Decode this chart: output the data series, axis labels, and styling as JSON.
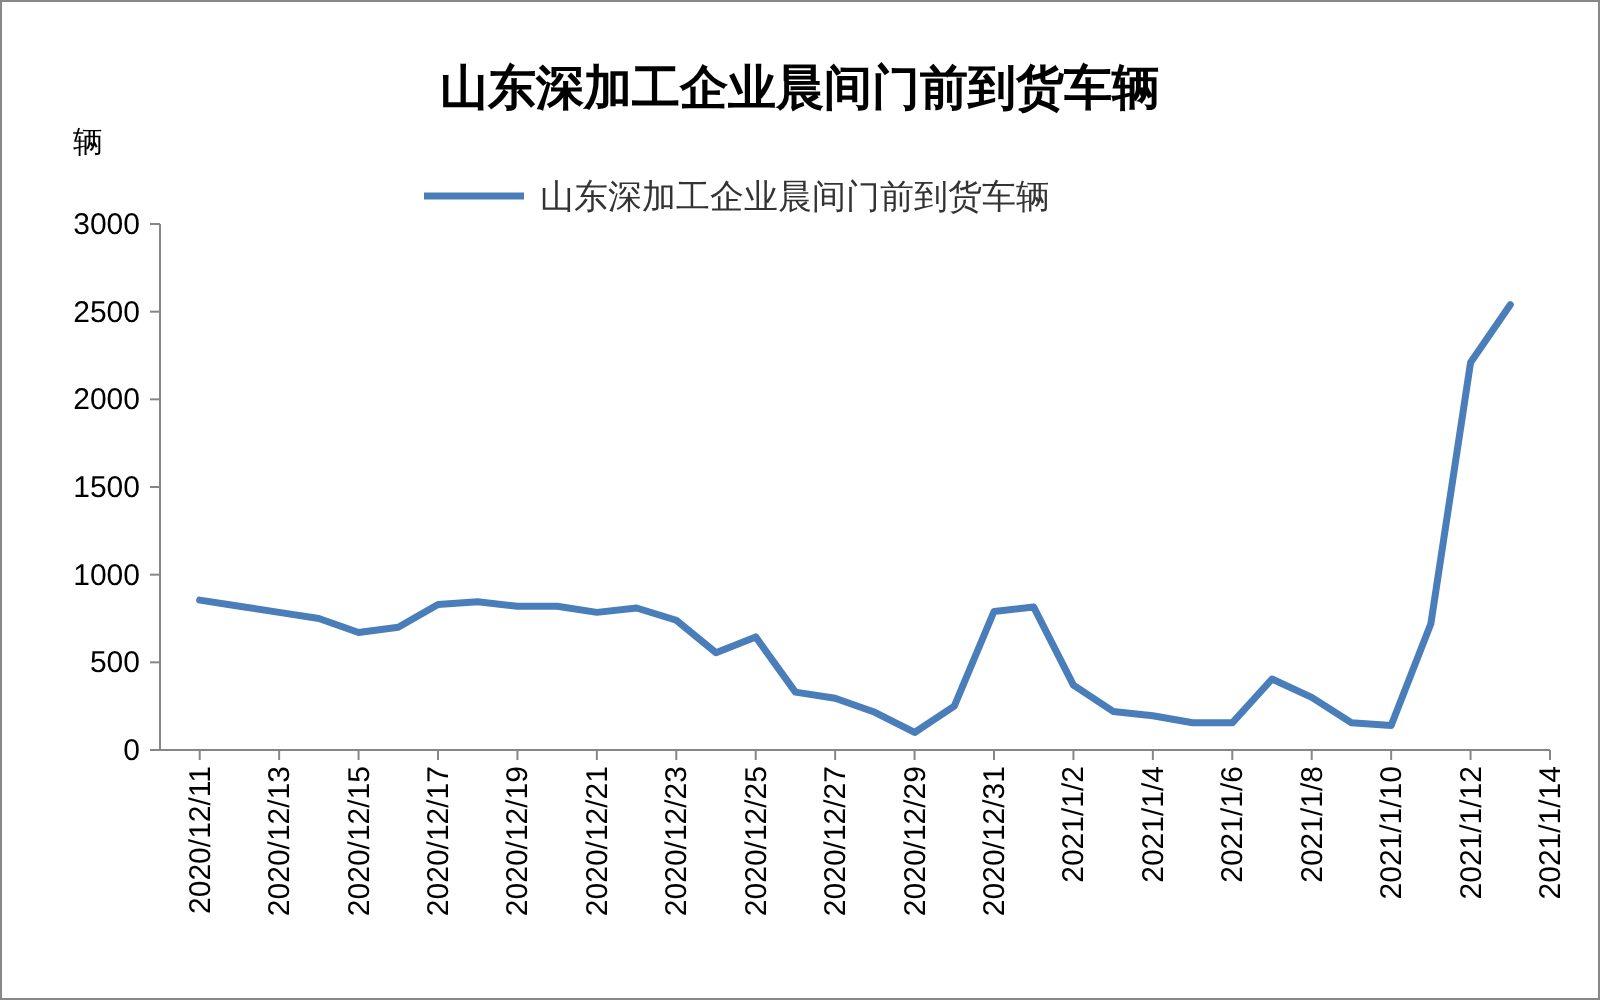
{
  "chart_data": {
    "type": "line",
    "title": "山东深加工企业晨间门前到货车辆",
    "ylabel": "辆",
    "x": [
      "2020-12-11",
      "2020-12-12",
      "2020-12-13",
      "2020-12-14",
      "2020-12-15",
      "2020-12-16",
      "2020-12-17",
      "2020-12-18",
      "2020-12-19",
      "2020-12-20",
      "2020-12-21",
      "2020-12-22",
      "2020-12-23",
      "2020-12-24",
      "2020-12-25",
      "2020-12-26",
      "2020-12-27",
      "2020-12-28",
      "2020-12-29",
      "2020-12-30",
      "2020-12-31",
      "2021-01-01",
      "2021-01-02",
      "2021-01-03",
      "2021-01-04",
      "2021-01-05",
      "2021-01-06",
      "2021-01-07",
      "2021-01-08",
      "2021-01-09",
      "2021-01-10",
      "2021-01-11",
      "2021-01-12",
      "2021-01-13"
    ],
    "series": [
      {
        "name": "山东深加工企业晨间门前到货车辆",
        "color": "#4a7ebb",
        "values": [
          855,
          820,
          785,
          750,
          670,
          700,
          830,
          845,
          820,
          820,
          785,
          810,
          740,
          555,
          645,
          330,
          295,
          215,
          100,
          250,
          790,
          815,
          370,
          220,
          195,
          155,
          155,
          405,
          300,
          155,
          140,
          720,
          2210,
          2540
        ]
      }
    ],
    "xlim": [
      "2020-12-10",
      "2021-01-14"
    ],
    "xticks": [
      {
        "value": "2020-12-11",
        "label": "2020/12/11"
      },
      {
        "value": "2020-12-13",
        "label": "2020/12/13"
      },
      {
        "value": "2020-12-15",
        "label": "2020/12/15"
      },
      {
        "value": "2020-12-17",
        "label": "2020/12/17"
      },
      {
        "value": "2020-12-19",
        "label": "2020/12/19"
      },
      {
        "value": "2020-12-21",
        "label": "2020/12/21"
      },
      {
        "value": "2020-12-23",
        "label": "2020/12/23"
      },
      {
        "value": "2020-12-25",
        "label": "2020/12/25"
      },
      {
        "value": "2020-12-27",
        "label": "2020/12/27"
      },
      {
        "value": "2020-12-29",
        "label": "2020/12/29"
      },
      {
        "value": "2020-12-31",
        "label": "2020/12/31"
      },
      {
        "value": "2021-01-02",
        "label": "2021/1/2"
      },
      {
        "value": "2021-01-04",
        "label": "2021/1/4"
      },
      {
        "value": "2021-01-06",
        "label": "2021/1/6"
      },
      {
        "value": "2021-01-08",
        "label": "2021/1/8"
      },
      {
        "value": "2021-01-10",
        "label": "2021/1/10"
      },
      {
        "value": "2021-01-12",
        "label": "2021/1/12"
      },
      {
        "value": "2021-01-14",
        "label": "2021/1/14"
      }
    ],
    "ylim": [
      0,
      3000
    ],
    "yticks": [
      0,
      500,
      1000,
      1500,
      2000,
      2500,
      3000
    ],
    "grid": false,
    "legend": "top",
    "marker": "none",
    "line_style": "solid"
  }
}
